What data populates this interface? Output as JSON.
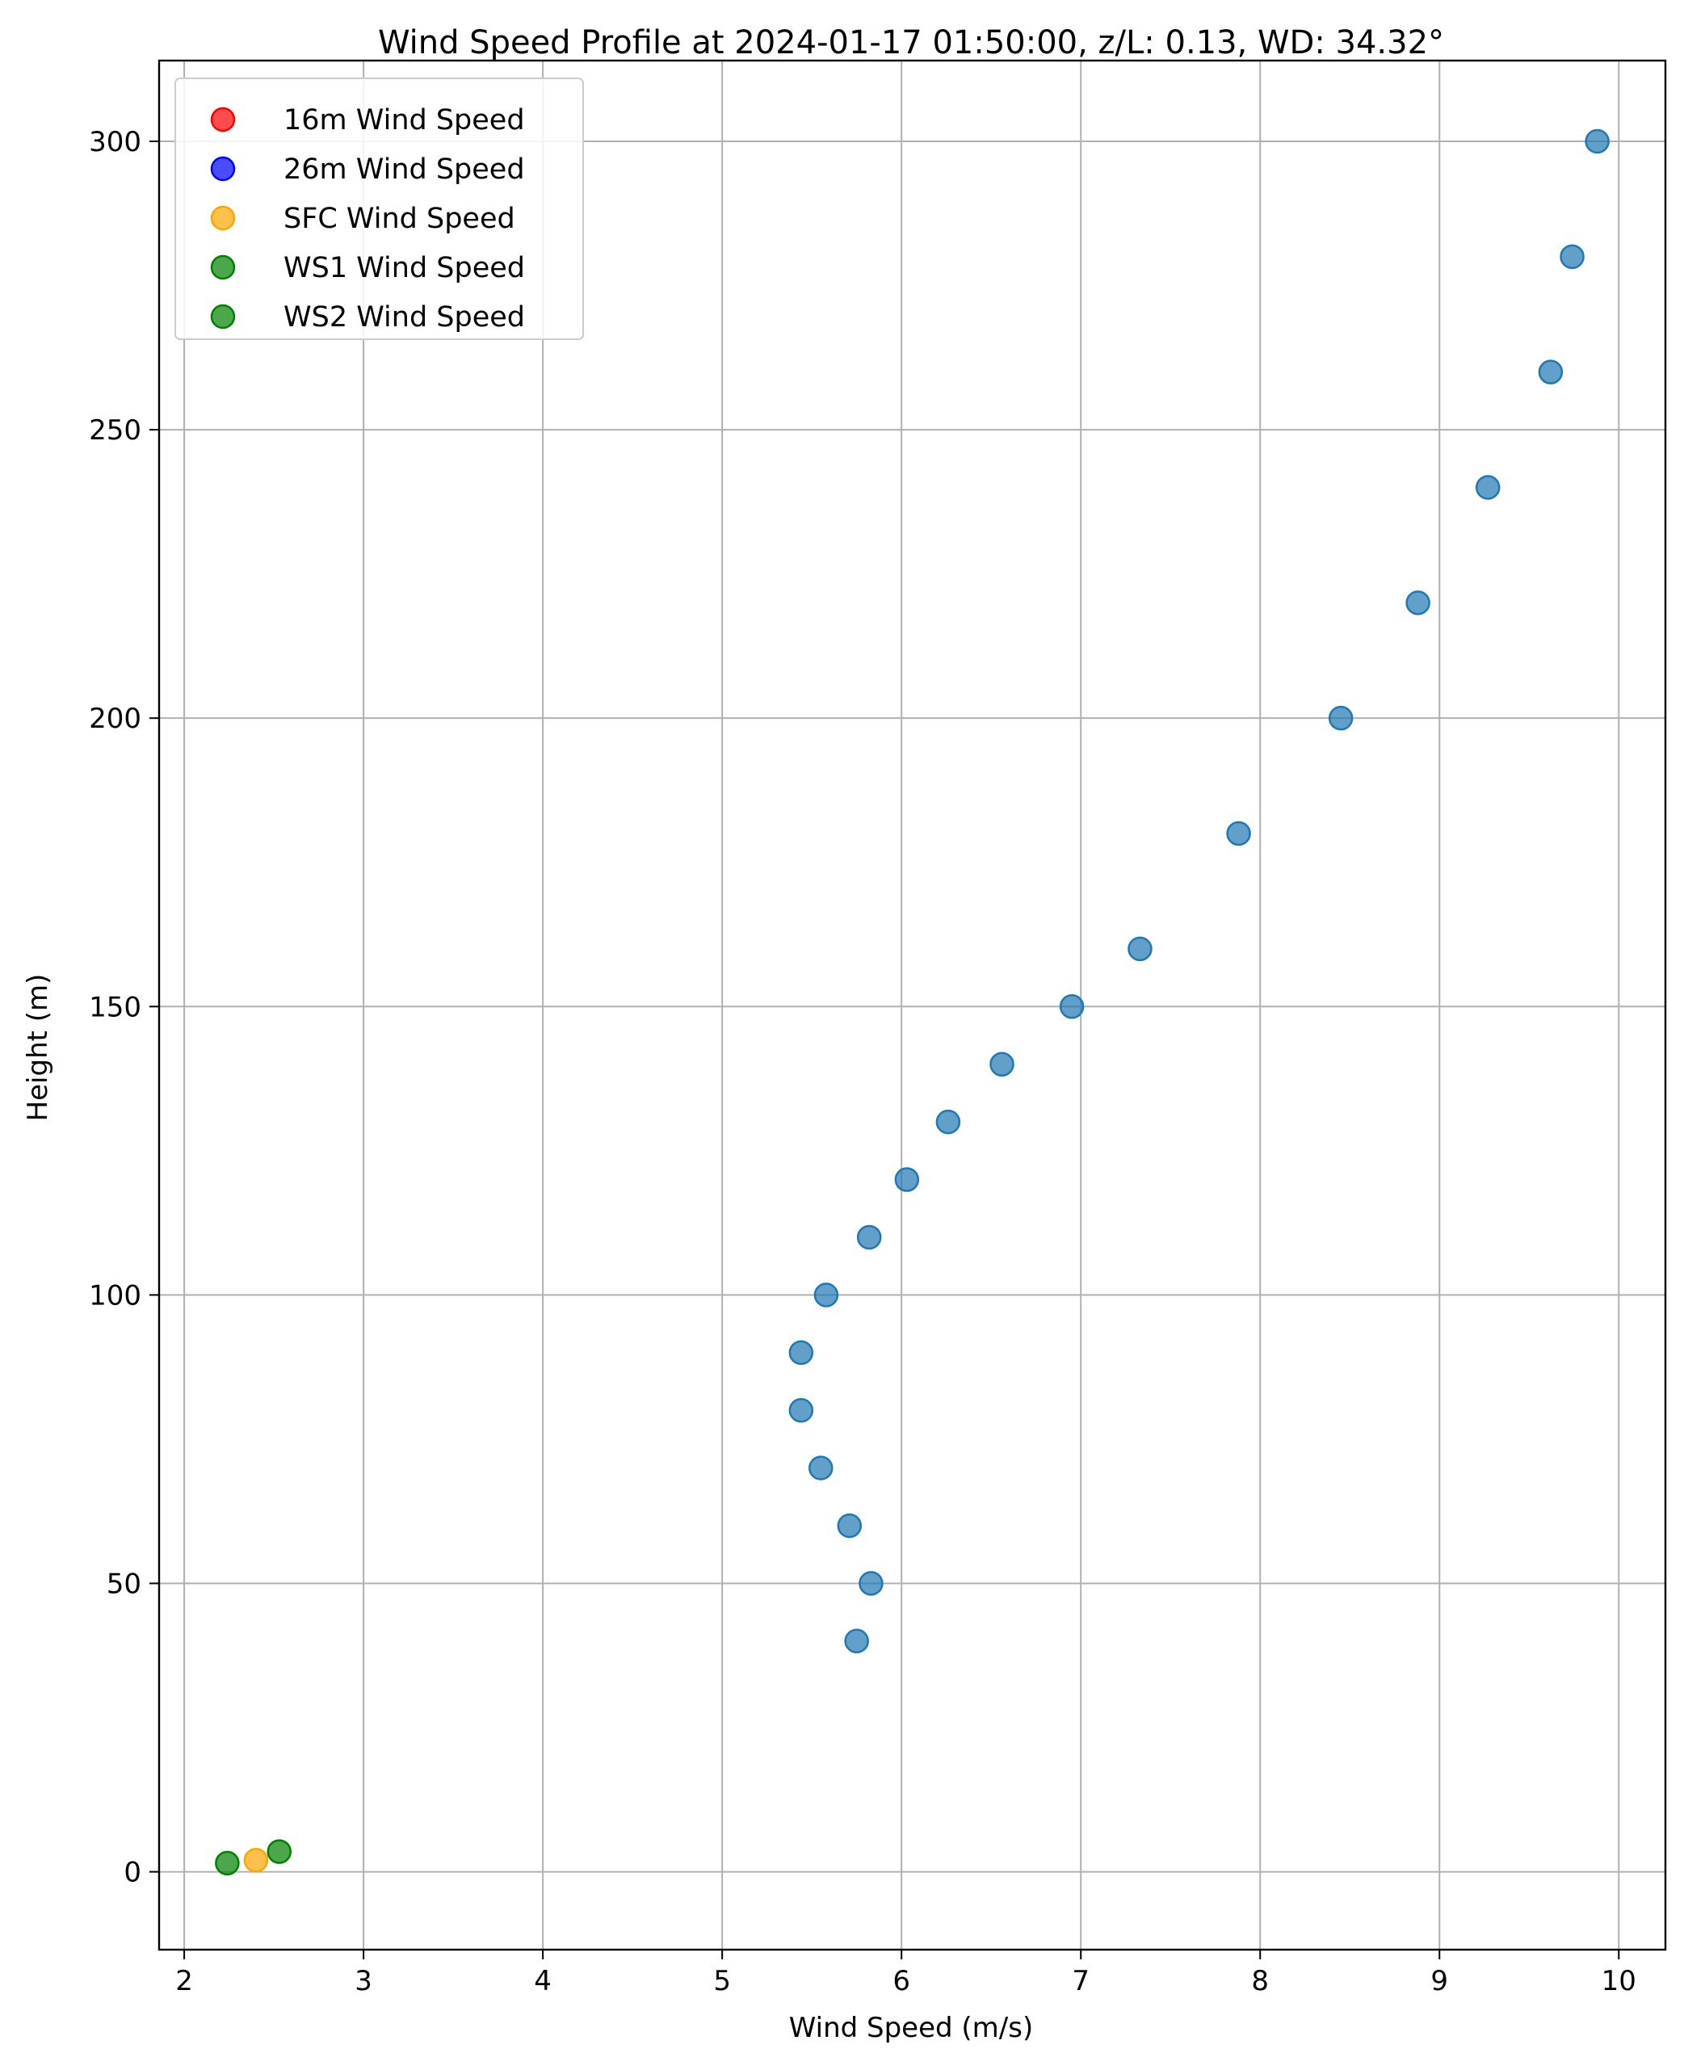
{
  "chart_data": {
    "type": "scatter",
    "title": "Wind Speed Profile at 2024-01-17 01:50:00, z/L: 0.13, WD: 34.32°",
    "xlabel": "Wind Speed (m/s)",
    "ylabel": "Height (m)",
    "xlim": [
      1.86,
      10.26
    ],
    "ylim": [
      -13.5,
      314
    ],
    "xticks": [
      2,
      3,
      4,
      5,
      6,
      7,
      8,
      9,
      10
    ],
    "yticks": [
      0,
      50,
      100,
      150,
      200,
      250,
      300
    ],
    "grid": true,
    "legend_position": "upper-left",
    "series": [
      {
        "name": "16m Wind Speed",
        "color": "#ff0000",
        "in_legend": true,
        "points": []
      },
      {
        "name": "26m Wind Speed",
        "color": "#0000ff",
        "in_legend": true,
        "points": []
      },
      {
        "name": "SFC Wind Speed",
        "color": "#ffa500",
        "in_legend": true,
        "points": [
          [
            2.4,
            2
          ]
        ]
      },
      {
        "name": "WS1 Wind Speed",
        "color": "#008000",
        "in_legend": true,
        "points": [
          [
            2.24,
            1.5
          ]
        ]
      },
      {
        "name": "WS2 Wind Speed",
        "color": "#008000",
        "in_legend": true,
        "points": [
          [
            2.53,
            3.5
          ]
        ]
      },
      {
        "color": "#1f77b4",
        "in_legend": false,
        "points": [
          [
            5.75,
            40
          ],
          [
            5.83,
            50
          ],
          [
            5.71,
            60
          ],
          [
            5.55,
            70
          ],
          [
            5.44,
            80
          ],
          [
            5.44,
            90
          ],
          [
            5.58,
            100
          ],
          [
            5.82,
            110
          ],
          [
            6.03,
            120
          ],
          [
            6.26,
            130
          ],
          [
            6.56,
            140
          ],
          [
            6.95,
            150
          ],
          [
            7.33,
            160
          ],
          [
            7.88,
            180
          ],
          [
            8.45,
            200
          ],
          [
            8.88,
            220
          ],
          [
            9.27,
            240
          ],
          [
            9.62,
            260
          ],
          [
            9.74,
            280
          ],
          [
            9.88,
            300
          ]
        ]
      }
    ]
  }
}
